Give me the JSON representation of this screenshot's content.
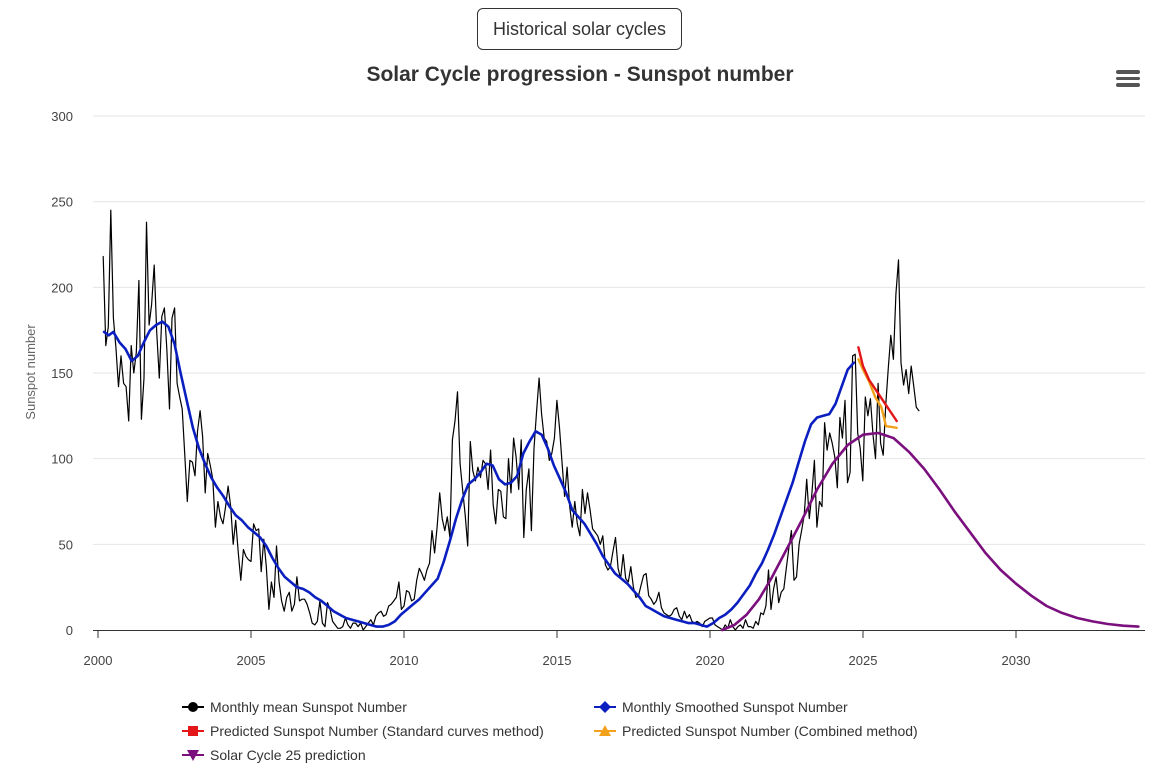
{
  "header": {
    "historical_button_label": "Historical solar cycles"
  },
  "menu": {
    "icon": "hamburger-menu-icon"
  },
  "chart_data": {
    "type": "line",
    "title": "Solar Cycle progression - Sunspot number",
    "xlabel": "",
    "ylabel": "Sunspot number",
    "xlim": [
      1999.9,
      2034.4
    ],
    "ylim": [
      0,
      300
    ],
    "x_ticks": [
      "2000",
      "2005",
      "2010",
      "2015",
      "2020",
      "2025",
      "2030"
    ],
    "x_tick_values": [
      2000,
      2005,
      2010,
      2015,
      2020,
      2025,
      2030
    ],
    "y_ticks": [
      "0",
      "50",
      "100",
      "150",
      "200",
      "250",
      "300"
    ],
    "y_tick_values": [
      0,
      50,
      100,
      150,
      200,
      250,
      300
    ],
    "grid": true,
    "legend_position": "bottom",
    "series": [
      {
        "name": "Monthly mean Sunspot Number",
        "color": "#000000",
        "marker": "circle",
        "start": 2000.17,
        "step": 0.0833,
        "values": [
          218,
          166,
          177,
          245,
          182,
          165,
          142,
          160,
          144,
          142,
          122,
          166,
          150,
          162,
          204,
          123,
          147,
          238,
          178,
          190,
          213,
          174,
          147,
          183,
          188,
          163,
          129,
          182,
          188,
          144,
          136,
          129,
          102,
          75,
          99,
          98,
          90,
          116,
          128,
          113,
          80,
          103,
          96,
          88,
          60,
          75,
          66,
          62,
          72,
          84,
          72,
          50,
          64,
          45,
          29,
          47,
          43,
          41,
          40,
          62,
          58,
          59,
          34,
          53,
          37,
          12,
          28,
          19,
          49,
          28,
          17,
          11,
          19,
          22,
          11,
          15,
          31,
          17,
          18,
          18,
          15,
          10,
          4,
          3,
          5,
          17,
          4,
          2,
          16,
          12,
          5,
          3,
          1,
          1,
          2,
          7,
          3,
          1,
          4,
          4,
          2,
          4,
          0,
          2,
          4,
          6,
          3,
          8,
          10,
          11,
          8,
          9,
          14,
          15,
          17,
          19,
          28,
          12,
          14,
          23,
          22,
          17,
          18,
          29,
          36,
          33,
          29,
          35,
          39,
          58,
          45,
          60,
          80,
          65,
          58,
          66,
          54,
          111,
          122,
          139,
          97,
          82,
          67,
          49,
          110,
          93,
          87,
          95,
          89,
          99,
          97,
          82,
          105,
          73,
          62,
          82,
          81,
          66,
          65,
          100,
          80,
          112,
          101,
          82,
          111,
          54,
          82,
          94,
          58,
          106,
          127,
          147,
          126,
          112,
          110,
          99,
          103,
          112,
          134,
          118,
          98,
          78,
          95,
          72,
          60,
          75,
          62,
          55,
          82,
          68,
          80,
          70,
          59,
          57,
          55,
          50,
          55,
          38,
          35,
          37,
          46,
          54,
          36,
          30,
          44,
          30,
          28,
          37,
          25,
          19,
          20,
          26,
          32,
          33,
          20,
          18,
          15,
          17,
          22,
          13,
          10,
          9,
          8,
          9,
          12,
          13,
          8,
          6,
          11,
          7,
          9,
          5,
          4,
          5,
          4,
          2,
          5,
          6,
          7,
          7,
          3,
          2,
          1,
          0,
          3,
          1,
          6,
          2,
          0,
          2,
          3,
          1,
          6,
          2,
          2,
          1,
          5,
          3,
          10,
          9,
          14,
          35,
          12,
          24,
          31,
          16,
          22,
          24,
          36,
          48,
          58,
          29,
          31,
          50,
          58,
          67,
          88,
          65,
          79,
          99,
          60,
          75,
          72,
          121,
          105,
          115,
          109,
          101,
          83,
          124,
          112,
          134,
          86,
          92,
          160,
          161,
          115,
          106,
          87,
          136,
          125,
          135,
          114,
          100,
          144,
          109,
          102,
          131,
          153,
          172,
          158,
          196,
          216,
          156,
          143,
          152,
          138,
          154,
          142,
          130,
          128
        ]
      },
      {
        "name": "Monthly Smoothed Sunspot Number",
        "color": "#0b1fc0",
        "marker": "diamond",
        "points": [
          [
            2000.2,
            174
          ],
          [
            2000.35,
            172
          ],
          [
            2000.5,
            174
          ],
          [
            2000.7,
            168
          ],
          [
            2000.9,
            164
          ],
          [
            2001.1,
            157
          ],
          [
            2001.3,
            160
          ],
          [
            2001.5,
            168
          ],
          [
            2001.7,
            175
          ],
          [
            2001.9,
            178
          ],
          [
            2002.1,
            180
          ],
          [
            2002.3,
            177
          ],
          [
            2002.5,
            167
          ],
          [
            2002.7,
            150
          ],
          [
            2002.9,
            134
          ],
          [
            2003.1,
            118
          ],
          [
            2003.3,
            106
          ],
          [
            2003.5,
            97
          ],
          [
            2003.7,
            89
          ],
          [
            2003.9,
            83
          ],
          [
            2004.1,
            78
          ],
          [
            2004.3,
            72
          ],
          [
            2004.5,
            67
          ],
          [
            2004.7,
            64
          ],
          [
            2004.9,
            60
          ],
          [
            2005.1,
            57
          ],
          [
            2005.3,
            54
          ],
          [
            2005.5,
            49
          ],
          [
            2005.7,
            42
          ],
          [
            2005.9,
            36
          ],
          [
            2006.1,
            31
          ],
          [
            2006.3,
            28
          ],
          [
            2006.5,
            25
          ],
          [
            2006.7,
            24
          ],
          [
            2006.9,
            22
          ],
          [
            2007.1,
            19
          ],
          [
            2007.3,
            17
          ],
          [
            2007.5,
            14
          ],
          [
            2007.7,
            11
          ],
          [
            2007.9,
            9
          ],
          [
            2008.1,
            7
          ],
          [
            2008.3,
            6
          ],
          [
            2008.5,
            5
          ],
          [
            2008.7,
            4
          ],
          [
            2008.9,
            3
          ],
          [
            2009.1,
            2
          ],
          [
            2009.3,
            2
          ],
          [
            2009.5,
            3
          ],
          [
            2009.7,
            5
          ],
          [
            2009.9,
            9
          ],
          [
            2010.1,
            12
          ],
          [
            2010.3,
            15
          ],
          [
            2010.5,
            18
          ],
          [
            2010.7,
            22
          ],
          [
            2010.9,
            26
          ],
          [
            2011.1,
            30
          ],
          [
            2011.3,
            40
          ],
          [
            2011.5,
            52
          ],
          [
            2011.7,
            65
          ],
          [
            2011.9,
            76
          ],
          [
            2012.1,
            85
          ],
          [
            2012.3,
            88
          ],
          [
            2012.5,
            92
          ],
          [
            2012.7,
            97
          ],
          [
            2012.9,
            96
          ],
          [
            2013.1,
            88
          ],
          [
            2013.3,
            85
          ],
          [
            2013.5,
            86
          ],
          [
            2013.7,
            90
          ],
          [
            2013.9,
            103
          ],
          [
            2014.1,
            110
          ],
          [
            2014.3,
            116
          ],
          [
            2014.5,
            114
          ],
          [
            2014.7,
            106
          ],
          [
            2014.9,
            96
          ],
          [
            2015.1,
            88
          ],
          [
            2015.3,
            80
          ],
          [
            2015.5,
            70
          ],
          [
            2015.7,
            66
          ],
          [
            2015.9,
            62
          ],
          [
            2016.1,
            56
          ],
          [
            2016.3,
            50
          ],
          [
            2016.5,
            43
          ],
          [
            2016.7,
            38
          ],
          [
            2016.9,
            33
          ],
          [
            2017.1,
            30
          ],
          [
            2017.3,
            27
          ],
          [
            2017.5,
            23
          ],
          [
            2017.7,
            19
          ],
          [
            2017.9,
            14
          ],
          [
            2018.1,
            12
          ],
          [
            2018.3,
            10
          ],
          [
            2018.5,
            8
          ],
          [
            2018.7,
            7
          ],
          [
            2018.9,
            6
          ],
          [
            2019.1,
            5
          ],
          [
            2019.3,
            4
          ],
          [
            2019.5,
            4
          ],
          [
            2019.7,
            3
          ],
          [
            2019.9,
            2
          ],
          [
            2020.1,
            4
          ],
          [
            2020.3,
            7
          ],
          [
            2020.5,
            9
          ],
          [
            2020.7,
            12
          ],
          [
            2020.9,
            16
          ],
          [
            2021.1,
            21
          ],
          [
            2021.3,
            26
          ],
          [
            2021.5,
            33
          ],
          [
            2021.7,
            39
          ],
          [
            2021.9,
            47
          ],
          [
            2022.1,
            56
          ],
          [
            2022.3,
            66
          ],
          [
            2022.5,
            76
          ],
          [
            2022.7,
            86
          ],
          [
            2022.9,
            98
          ],
          [
            2023.1,
            110
          ],
          [
            2023.3,
            120
          ],
          [
            2023.5,
            124
          ],
          [
            2023.7,
            125
          ],
          [
            2023.9,
            126
          ],
          [
            2024.1,
            132
          ],
          [
            2024.3,
            142
          ],
          [
            2024.5,
            152
          ],
          [
            2024.7,
            156
          ]
        ]
      },
      {
        "name": "Predicted Sunspot Number (Standard curves method)",
        "color": "#e3161a",
        "marker": "square",
        "points": [
          [
            2024.85,
            165
          ],
          [
            2025.0,
            154
          ],
          [
            2025.2,
            146
          ],
          [
            2025.5,
            138
          ],
          [
            2025.8,
            130
          ],
          [
            2026.1,
            122
          ]
        ]
      },
      {
        "name": "Predicted Sunspot Number (Combined method)",
        "color": "#f2a21a",
        "marker": "triangle",
        "points": [
          [
            2024.85,
            158
          ],
          [
            2025.0,
            152
          ],
          [
            2025.2,
            145
          ],
          [
            2025.4,
            136
          ],
          [
            2025.6,
            130
          ],
          [
            2025.75,
            119
          ],
          [
            2026.1,
            118
          ]
        ]
      },
      {
        "name": "Solar Cycle 25 prediction",
        "color": "#7a0f7d",
        "marker": "triangle-down",
        "points": [
          [
            2020.4,
            0
          ],
          [
            2020.8,
            3
          ],
          [
            2021.2,
            9
          ],
          [
            2021.6,
            18
          ],
          [
            2022.0,
            30
          ],
          [
            2022.5,
            47
          ],
          [
            2023.0,
            64
          ],
          [
            2023.5,
            82
          ],
          [
            2024.0,
            97
          ],
          [
            2024.5,
            108
          ],
          [
            2025.0,
            114
          ],
          [
            2025.5,
            115
          ],
          [
            2026.0,
            112
          ],
          [
            2026.5,
            104
          ],
          [
            2027.0,
            94
          ],
          [
            2027.5,
            82
          ],
          [
            2028.0,
            69
          ],
          [
            2028.5,
            57
          ],
          [
            2029.0,
            45
          ],
          [
            2029.5,
            35
          ],
          [
            2030.0,
            27
          ],
          [
            2030.5,
            20
          ],
          [
            2031.0,
            14
          ],
          [
            2031.5,
            10
          ],
          [
            2032.0,
            7
          ],
          [
            2032.5,
            5
          ],
          [
            2033.0,
            3.5
          ],
          [
            2033.5,
            2.5
          ],
          [
            2034.0,
            2
          ]
        ]
      }
    ]
  }
}
